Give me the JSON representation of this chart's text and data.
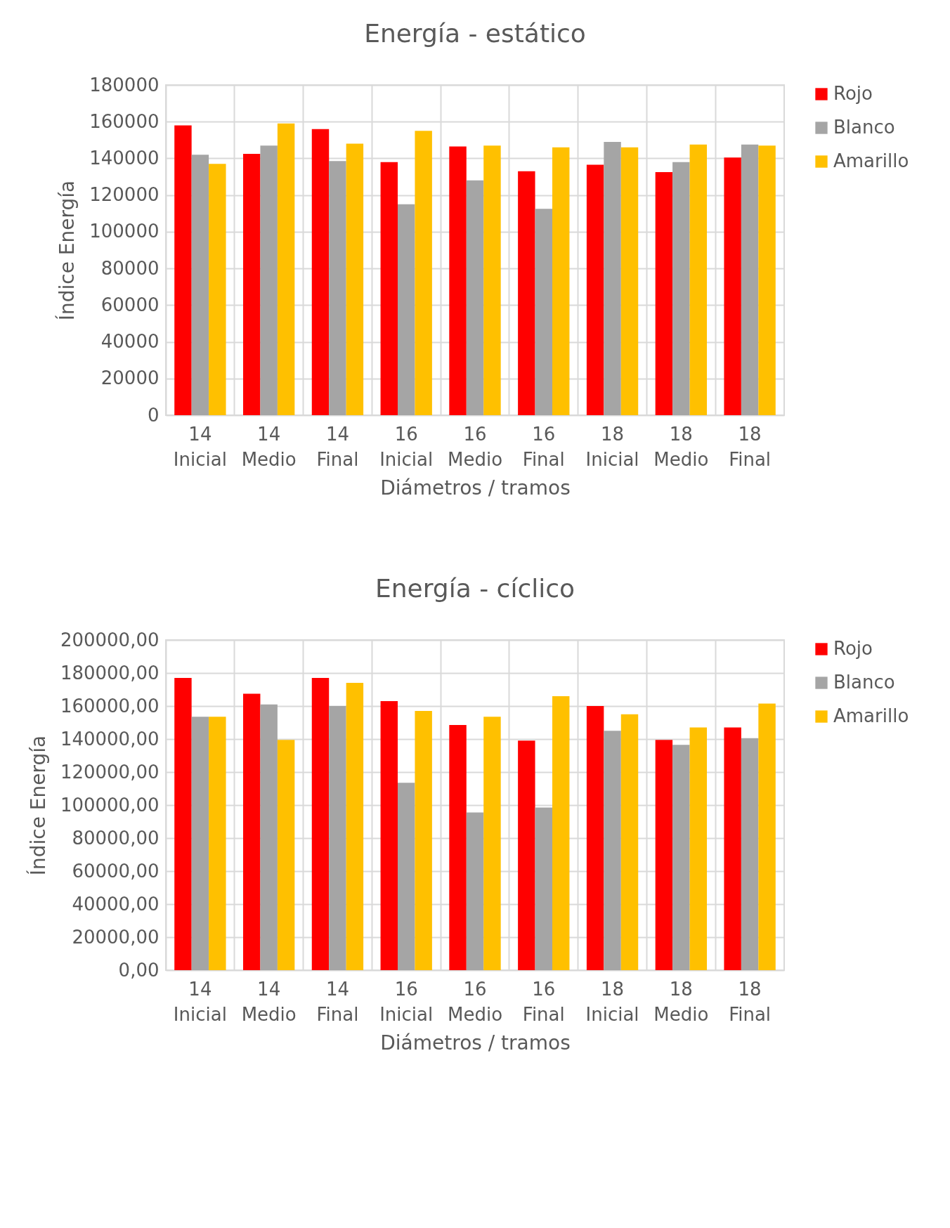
{
  "chart_data": [
    {
      "type": "bar",
      "title": "Energía - estático",
      "xlabel": "Diámetros / tramos",
      "ylabel": "Índice Energía",
      "categories": [
        "14 Inicial",
        "14 Medio",
        "14 Final",
        "16 Inicial",
        "16 Medio",
        "16 Final",
        "18 Inicial",
        "18 Medio",
        "18 Final"
      ],
      "series": [
        {
          "name": "Rojo",
          "color": "#ff0000",
          "values": [
            158000,
            142500,
            156000,
            138000,
            146500,
            133000,
            136500,
            132500,
            140500
          ]
        },
        {
          "name": "Blanco",
          "color": "#a5a5a5",
          "values": [
            142000,
            147000,
            138500,
            115000,
            128000,
            112500,
            149000,
            138000,
            147500
          ]
        },
        {
          "name": "Amarillo",
          "color": "#ffc000",
          "values": [
            137000,
            159000,
            148000,
            155000,
            147000,
            146000,
            146000,
            147500,
            147000
          ]
        }
      ],
      "ylim": [
        0,
        180000
      ],
      "yticks": [
        0,
        20000,
        40000,
        60000,
        80000,
        100000,
        120000,
        140000,
        160000,
        180000
      ],
      "grid": true,
      "legend": "right"
    },
    {
      "type": "bar",
      "title": "Energía - cíclico",
      "xlabel": "Diámetros / tramos",
      "ylabel": "Índice Energía",
      "categories": [
        "14 Inicial",
        "14 Medio",
        "14 Final",
        "16 Inicial",
        "16 Medio",
        "16 Final",
        "18 Inicial",
        "18 Medio",
        "18 Final"
      ],
      "series": [
        {
          "name": "Rojo",
          "color": "#ff0000",
          "values": [
            177000,
            167500,
            177000,
            163000,
            148500,
            139000,
            160000,
            139500,
            147000
          ]
        },
        {
          "name": "Blanco",
          "color": "#a5a5a5",
          "values": [
            153500,
            161000,
            160000,
            113500,
            95500,
            98500,
            145000,
            136500,
            140500
          ]
        },
        {
          "name": "Amarillo",
          "color": "#ffc000",
          "values": [
            153500,
            139500,
            174000,
            157000,
            153500,
            166000,
            155000,
            147000,
            161500
          ]
        }
      ],
      "ylim": [
        0,
        200000
      ],
      "yticks": [
        {
          "value": 0,
          "label": "0,00"
        },
        {
          "value": 20000,
          "label": "20000,00"
        },
        {
          "value": 40000,
          "label": "40000,00"
        },
        {
          "value": 60000,
          "label": "60000,00"
        },
        {
          "value": 80000,
          "label": "80000,00"
        },
        {
          "value": 100000,
          "label": "100000,00"
        },
        {
          "value": 120000,
          "label": "120000,00"
        },
        {
          "value": 140000,
          "label": "140000,00"
        },
        {
          "value": 160000,
          "label": "160000,00"
        },
        {
          "value": 180000,
          "label": "180000,00"
        },
        {
          "value": 200000,
          "label": "200000,00"
        }
      ],
      "grid": true,
      "legend": "right"
    }
  ]
}
